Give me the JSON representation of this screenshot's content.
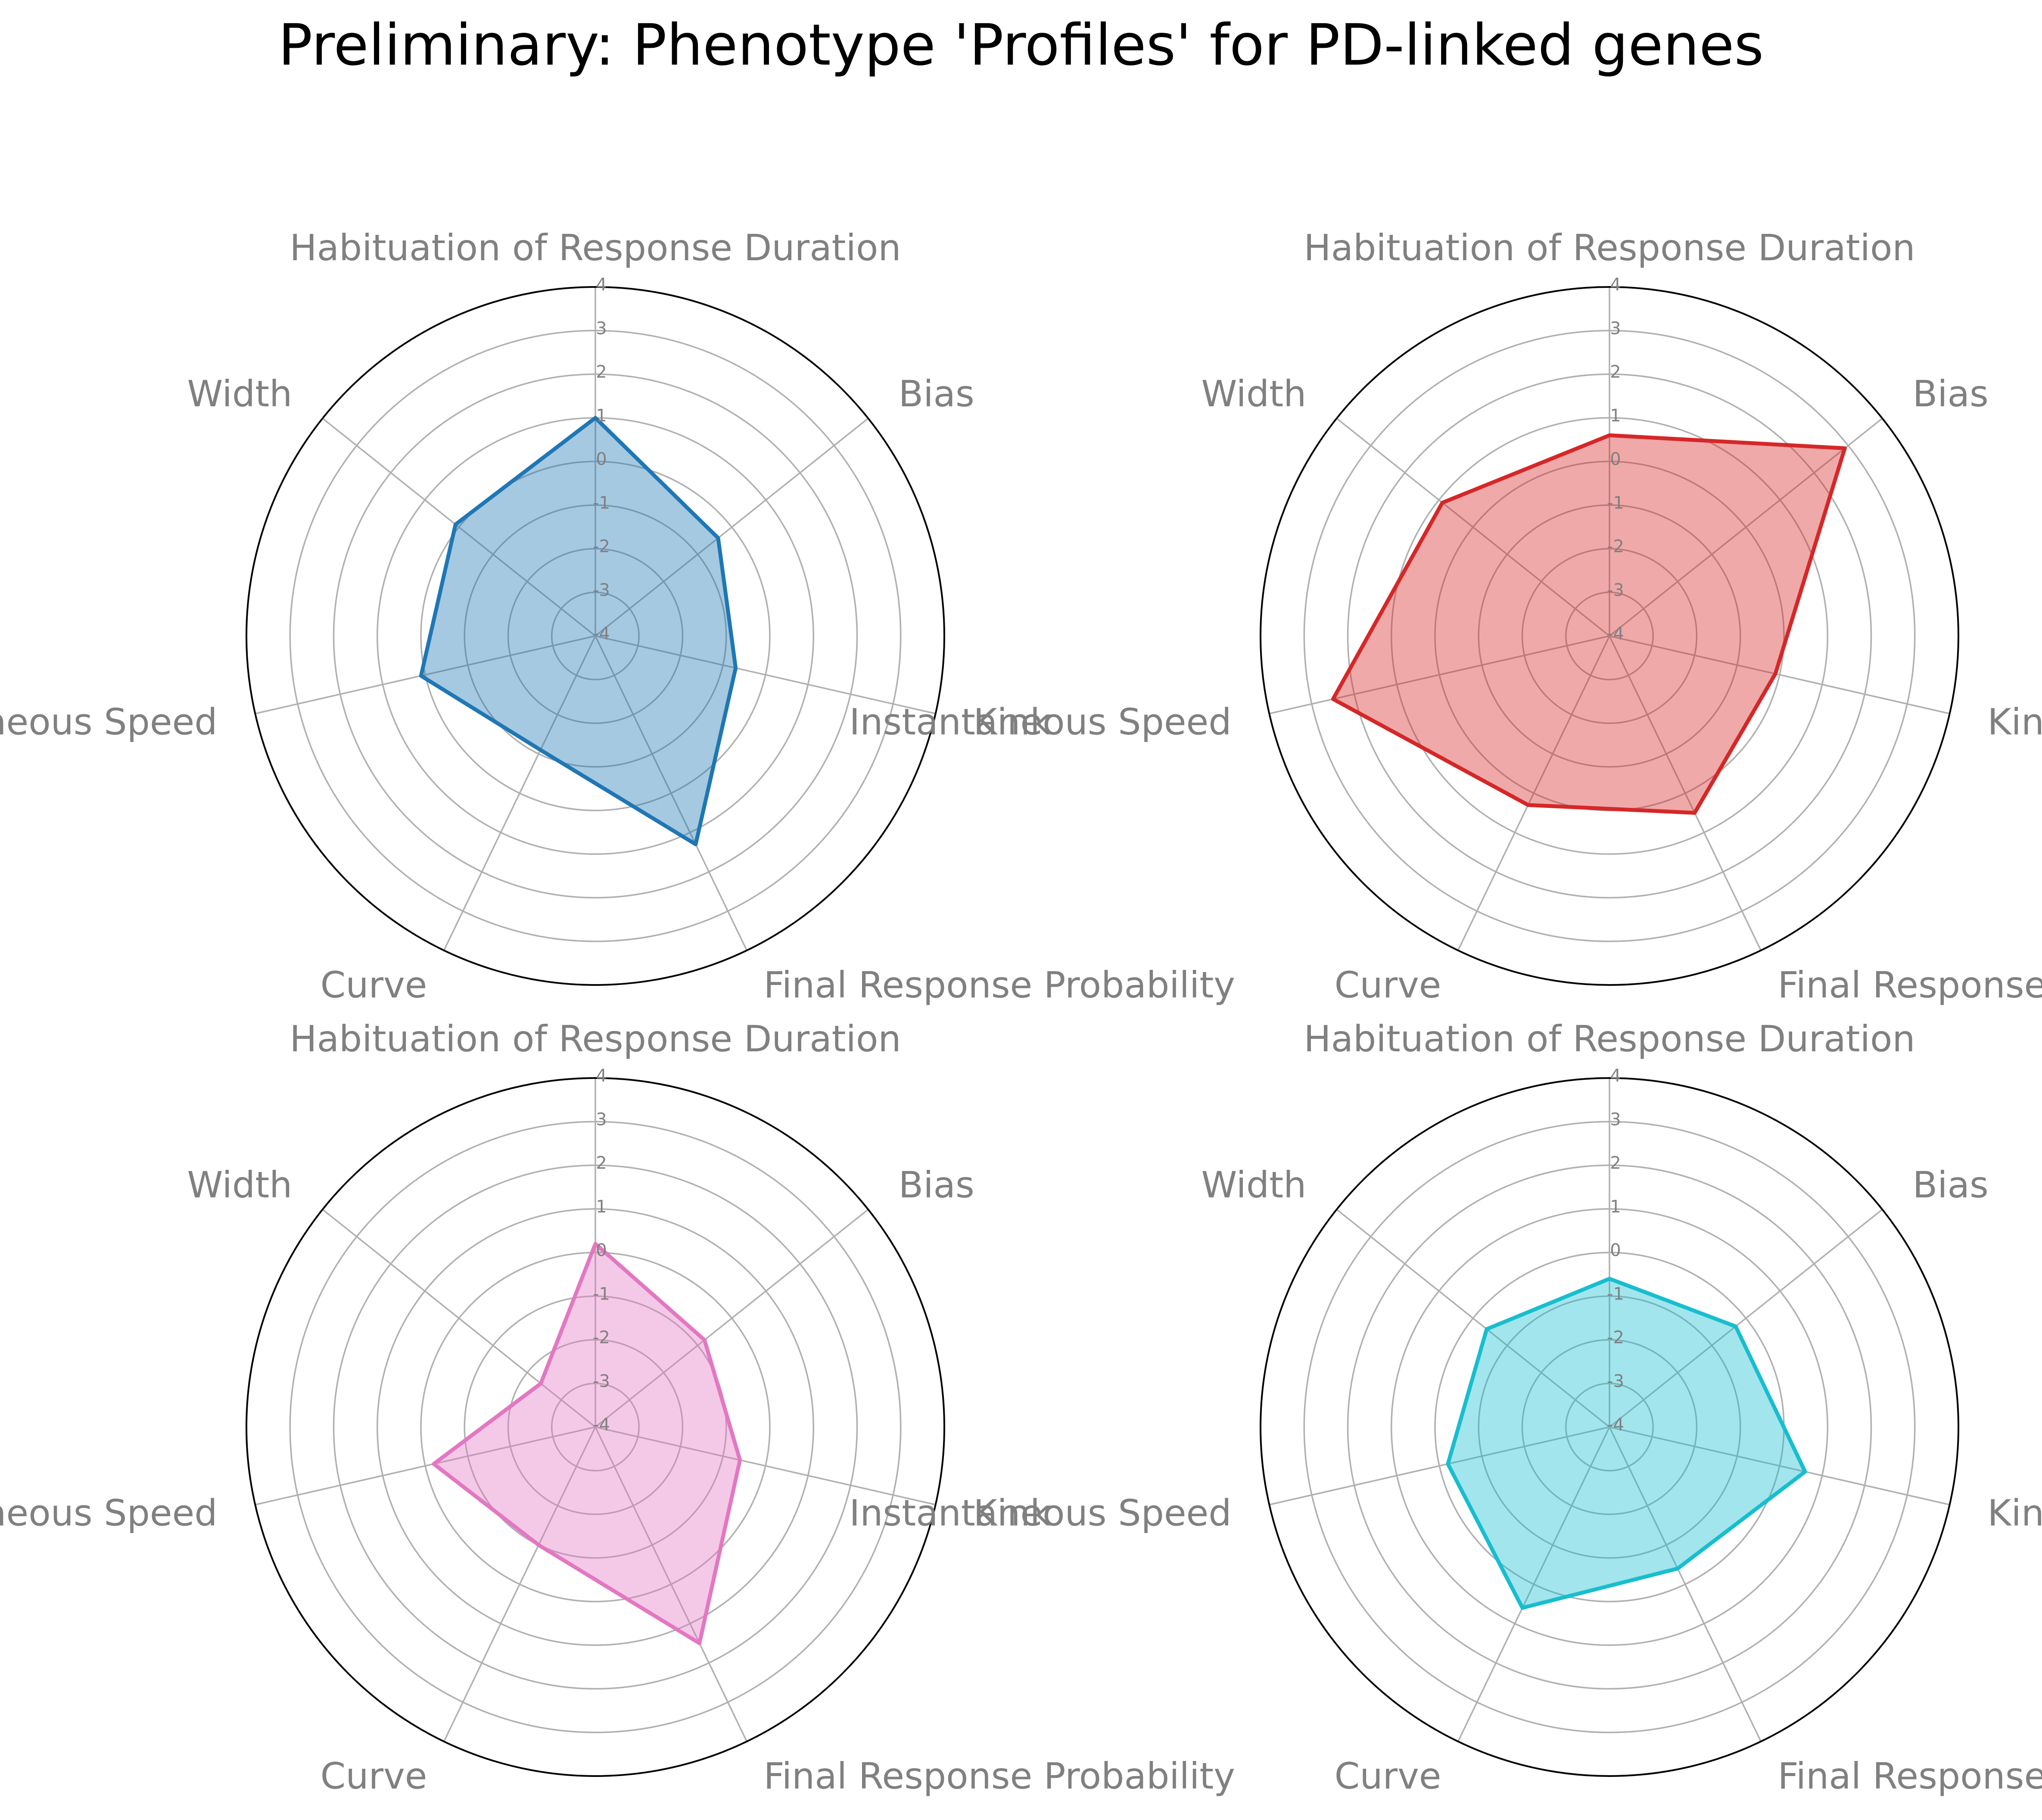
{
  "title": "Preliminary: Phenotype 'Profiles' for PD-linked genes",
  "colors": {
    "grid": "#b0b0b0",
    "frame": "#000000",
    "label": "#808080"
  },
  "chart_data": [
    {
      "type": "radar",
      "categories": [
        "Habituation of Response Duration",
        "Bias",
        "Kink",
        "Final Response Probability",
        "Curve",
        "Instantaneous Speed",
        "Width"
      ],
      "rticks": [
        -4,
        -3,
        -2,
        -1,
        0,
        1,
        2,
        3,
        4
      ],
      "rlim": [
        -4,
        4
      ],
      "grid": true,
      "color": "#1f77b4",
      "values": [
        1.0,
        -0.4,
        -0.7,
        1.3,
        -1.1,
        0.1,
        0.1
      ]
    },
    {
      "type": "radar",
      "categories": [
        "Habituation of Response Duration",
        "Bias",
        "Kink",
        "Final Response Probability",
        "Curve",
        "Instantaneous Speed",
        "Width"
      ],
      "rticks": [
        -4,
        -3,
        -2,
        -1,
        0,
        1,
        2,
        3,
        4
      ],
      "rlim": [
        -4,
        4
      ],
      "grid": true,
      "color": "#d62728",
      "values": [
        0.6,
        2.9,
        -0.1,
        0.5,
        0.3,
        2.5,
        0.9
      ]
    },
    {
      "type": "radar",
      "categories": [
        "Habituation of Response Duration",
        "Bias",
        "Kink",
        "Final Response Probability",
        "Curve",
        "Instantaneous Speed",
        "Width"
      ],
      "rticks": [
        -4,
        -3,
        -2,
        -1,
        0,
        1,
        2,
        3,
        4
      ],
      "rlim": [
        -4,
        4
      ],
      "grid": true,
      "color": "#e377c2",
      "values": [
        0.2,
        -0.8,
        -0.6,
        1.5,
        -1.0,
        -0.2,
        -2.4
      ]
    },
    {
      "type": "radar",
      "categories": [
        "Habituation of Response Duration",
        "Bias",
        "Kink",
        "Final Response Probability",
        "Curve",
        "Instantaneous Speed",
        "Width"
      ],
      "rticks": [
        -4,
        -3,
        -2,
        -1,
        0,
        1,
        2,
        3,
        4
      ],
      "rlim": [
        -4,
        4
      ],
      "grid": true,
      "color": "#17becf",
      "values": [
        -0.6,
        -0.3,
        0.6,
        -0.4,
        0.6,
        -0.2,
        -0.4
      ]
    }
  ]
}
